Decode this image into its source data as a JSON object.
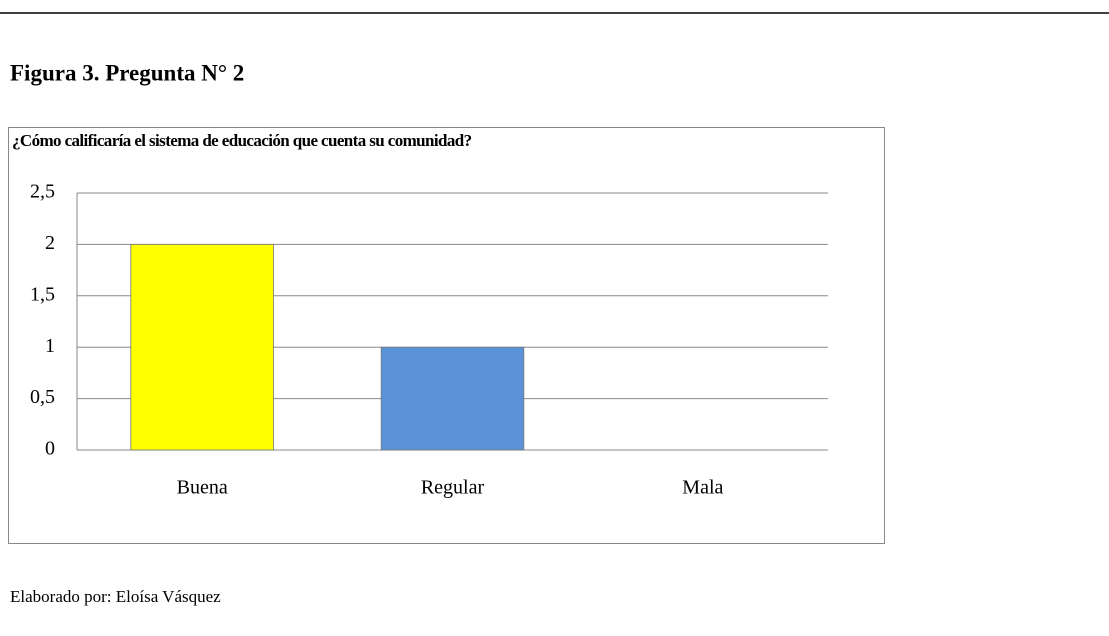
{
  "caption": "Figura 3. Pregunta N° 2",
  "chart_data": {
    "type": "bar",
    "title": "¿Cómo calificaría el sistema de educación que cuenta su comunidad?",
    "categories": [
      "Buena",
      "Regular",
      "Mala"
    ],
    "values": [
      2,
      1,
      0
    ],
    "colors": [
      "#ffff00",
      "#5a92d6",
      "#5a92d6"
    ],
    "ylim": [
      0,
      2.5
    ],
    "yticks": [
      0,
      {
        "value": 0.5,
        "label": "0,5"
      },
      1,
      {
        "value": 1.5,
        "label": "1,5"
      },
      2,
      {
        "value": 2.5,
        "label": "2,5"
      }
    ],
    "grid": true
  },
  "source": "Elaborado por: Eloísa Vásquez"
}
